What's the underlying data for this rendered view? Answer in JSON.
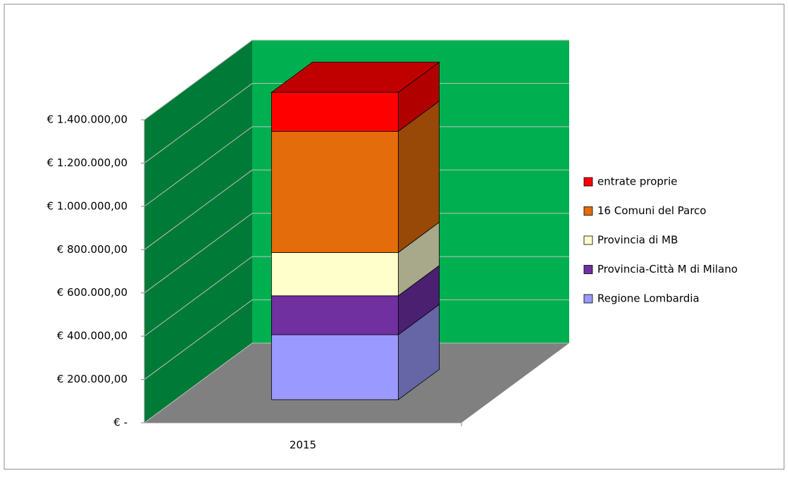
{
  "chart_data": {
    "type": "bar3d_stacked",
    "categories": [
      "2015"
    ],
    "series": [
      {
        "name": "Regione Lombardia",
        "color": "#9999ff",
        "side": "#6666a6",
        "values": [
          300000
        ]
      },
      {
        "name": "Provincia-Città M di Milano",
        "color": "#7030a0",
        "side": "#4b2070",
        "values": [
          180000
        ]
      },
      {
        "name": "Provincia di MB",
        "color": "#ffffcc",
        "side": "#a8a88a",
        "values": [
          200000
        ]
      },
      {
        "name": "16 Comuni del Parco",
        "color": "#e46c0a",
        "side": "#984807",
        "values": [
          560000
        ]
      },
      {
        "name": "entrate proprie",
        "color": "#ff0000",
        "side": "#b00000",
        "top": "#c00000",
        "values": [
          180000
        ]
      }
    ],
    "ylim": [
      0,
      1400000
    ],
    "yticks": [
      {
        "value": 0,
        "label": "€ -"
      },
      {
        "value": 200000,
        "label": "€ 200.000,00"
      },
      {
        "value": 400000,
        "label": "€ 400.000,00"
      },
      {
        "value": 600000,
        "label": "€ 600.000,00"
      },
      {
        "value": 800000,
        "label": "€ 800.000,00"
      },
      {
        "value": 1000000,
        "label": "€ 1.000.000,00"
      },
      {
        "value": 1200000,
        "label": "€ 1.200.000,00"
      },
      {
        "value": 1400000,
        "label": "€ 1.400.000,00"
      }
    ],
    "grid": true,
    "legend": "right",
    "wall_color": "#00b050",
    "side_wall_color": "#007a37",
    "floor_color": "#808080"
  }
}
